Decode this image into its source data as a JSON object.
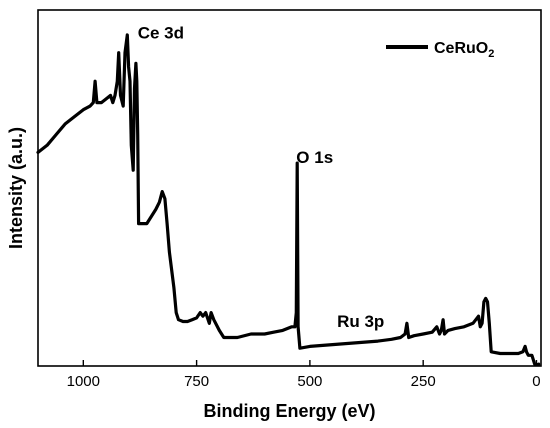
{
  "chart_data": {
    "type": "line",
    "xlabel": "Binding Energy (eV)",
    "ylabel": "Intensity (a.u.)",
    "xlim": [
      1100,
      -10
    ],
    "x_reversed": true,
    "ylim": [
      0,
      100
    ],
    "y_ticks_shown": false,
    "x_ticks": [
      1000,
      750,
      500,
      250,
      0
    ],
    "x_tick_labels": [
      "1000",
      "750",
      "500",
      "250",
      "0"
    ],
    "legend": {
      "position": "top-right",
      "label_base": "CeRuO",
      "label_sub": "2"
    },
    "annotations": [
      {
        "text": "Ce 3d",
        "x": 880,
        "y": 92
      },
      {
        "text": "O 1s",
        "x": 530,
        "y": 57
      },
      {
        "text": "Ru 3p",
        "x": 440,
        "y": 11
      }
    ],
    "series": [
      {
        "color": "#000000",
        "points": [
          [
            1100,
            60
          ],
          [
            1080,
            62
          ],
          [
            1060,
            65
          ],
          [
            1040,
            68
          ],
          [
            1020,
            70
          ],
          [
            1000,
            72
          ],
          [
            985,
            73
          ],
          [
            978,
            74
          ],
          [
            974,
            80
          ],
          [
            970,
            74
          ],
          [
            960,
            74
          ],
          [
            950,
            75
          ],
          [
            940,
            76
          ],
          [
            935,
            74
          ],
          [
            930,
            76
          ],
          [
            925,
            80
          ],
          [
            922,
            88
          ],
          [
            918,
            76
          ],
          [
            912,
            73
          ],
          [
            908,
            88
          ],
          [
            903,
            93
          ],
          [
            900,
            84
          ],
          [
            897,
            80
          ],
          [
            894,
            62
          ],
          [
            890,
            55
          ],
          [
            887,
            78
          ],
          [
            884,
            85
          ],
          [
            882,
            80
          ],
          [
            880,
            65
          ],
          [
            878,
            40
          ],
          [
            860,
            40
          ],
          [
            850,
            42
          ],
          [
            840,
            44
          ],
          [
            832,
            46
          ],
          [
            826,
            49
          ],
          [
            820,
            47
          ],
          [
            815,
            40
          ],
          [
            810,
            32
          ],
          [
            800,
            22
          ],
          [
            795,
            15
          ],
          [
            790,
            13
          ],
          [
            780,
            12.5
          ],
          [
            770,
            12.5
          ],
          [
            760,
            13
          ],
          [
            750,
            13.5
          ],
          [
            742,
            15
          ],
          [
            736,
            14
          ],
          [
            730,
            15
          ],
          [
            722,
            12
          ],
          [
            718,
            15
          ],
          [
            712,
            13
          ],
          [
            700,
            10
          ],
          [
            690,
            8
          ],
          [
            660,
            8
          ],
          [
            630,
            9
          ],
          [
            600,
            9
          ],
          [
            580,
            9.5
          ],
          [
            560,
            10
          ],
          [
            540,
            11
          ],
          [
            533,
            11
          ],
          [
            530,
            15
          ],
          [
            528,
            57
          ],
          [
            526,
            11
          ],
          [
            522,
            5
          ],
          [
            500,
            5.5
          ],
          [
            450,
            6
          ],
          [
            400,
            6.5
          ],
          [
            350,
            7
          ],
          [
            320,
            7.5
          ],
          [
            300,
            8
          ],
          [
            290,
            9
          ],
          [
            286,
            12
          ],
          [
            284,
            10
          ],
          [
            282,
            8
          ],
          [
            270,
            8.5
          ],
          [
            250,
            9
          ],
          [
            230,
            9.5
          ],
          [
            220,
            11
          ],
          [
            214,
            9
          ],
          [
            210,
            10
          ],
          [
            206,
            13
          ],
          [
            203,
            9
          ],
          [
            195,
            10
          ],
          [
            180,
            10.5
          ],
          [
            160,
            11
          ],
          [
            140,
            12
          ],
          [
            128,
            14
          ],
          [
            124,
            11
          ],
          [
            120,
            12
          ],
          [
            116,
            18
          ],
          [
            112,
            19
          ],
          [
            108,
            18
          ],
          [
            104,
            12
          ],
          [
            100,
            4
          ],
          [
            80,
            3.5
          ],
          [
            60,
            3.5
          ],
          [
            40,
            3.5
          ],
          [
            30,
            4
          ],
          [
            25,
            5.5
          ],
          [
            22,
            4
          ],
          [
            18,
            3
          ],
          [
            10,
            3
          ],
          [
            4,
            0.5
          ],
          [
            0,
            0.3
          ],
          [
            -5,
            0.5
          ]
        ]
      }
    ]
  }
}
